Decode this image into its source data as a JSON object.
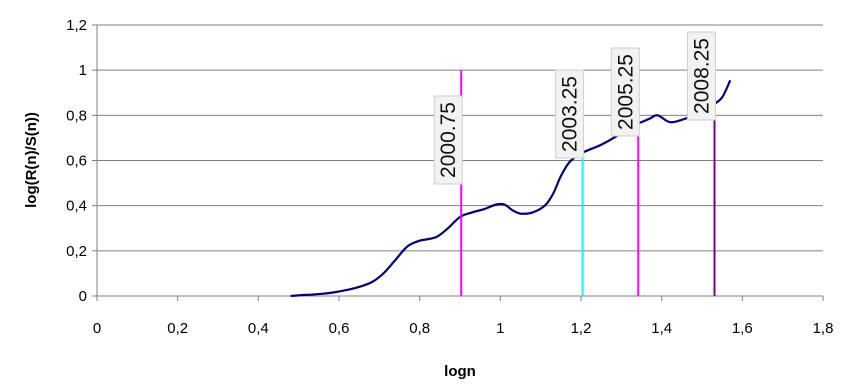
{
  "chart_data": {
    "type": "line",
    "xlabel": "logn",
    "ylabel": "log(R(n)/S(n))",
    "xlim": [
      0,
      1.8
    ],
    "ylim": [
      0,
      1.2
    ],
    "x_ticks": [
      "0",
      "0,2",
      "0,4",
      "0,6",
      "0,8",
      "1",
      "1,2",
      "1,4",
      "1,6",
      "1,8"
    ],
    "y_ticks": [
      "0",
      "0,2",
      "0,4",
      "0,6",
      "0,8",
      "1",
      "1,2"
    ],
    "grid": "horizontal",
    "series": [
      {
        "color": "#000080",
        "points": [
          [
            0.48,
            0.0
          ],
          [
            0.52,
            0.005
          ],
          [
            0.56,
            0.01
          ],
          [
            0.6,
            0.02
          ],
          [
            0.64,
            0.035
          ],
          [
            0.68,
            0.06
          ],
          [
            0.71,
            0.1
          ],
          [
            0.74,
            0.16
          ],
          [
            0.77,
            0.22
          ],
          [
            0.8,
            0.245
          ],
          [
            0.84,
            0.26
          ],
          [
            0.87,
            0.3
          ],
          [
            0.9,
            0.35
          ],
          [
            0.93,
            0.37
          ],
          [
            0.96,
            0.385
          ],
          [
            0.99,
            0.405
          ],
          [
            1.01,
            0.405
          ],
          [
            1.03,
            0.38
          ],
          [
            1.05,
            0.365
          ],
          [
            1.08,
            0.37
          ],
          [
            1.11,
            0.4
          ],
          [
            1.13,
            0.45
          ],
          [
            1.15,
            0.53
          ],
          [
            1.17,
            0.59
          ],
          [
            1.19,
            0.62
          ],
          [
            1.21,
            0.64
          ],
          [
            1.25,
            0.67
          ],
          [
            1.29,
            0.71
          ],
          [
            1.32,
            0.75
          ],
          [
            1.35,
            0.77
          ],
          [
            1.37,
            0.785
          ],
          [
            1.39,
            0.8
          ],
          [
            1.42,
            0.77
          ],
          [
            1.45,
            0.78
          ],
          [
            1.48,
            0.8
          ],
          [
            1.5,
            0.82
          ],
          [
            1.53,
            0.85
          ],
          [
            1.55,
            0.88
          ],
          [
            1.57,
            0.955
          ]
        ]
      }
    ],
    "markers": [
      {
        "x": 0.903,
        "label": "2000.75",
        "color": "#ff00ff"
      },
      {
        "x": 1.204,
        "label": "2003.25",
        "color": "#00ffff"
      },
      {
        "x": 1.342,
        "label": "2005.25",
        "color": "#ff00ff"
      },
      {
        "x": 1.531,
        "label": "2008.25",
        "color": "#800080"
      }
    ]
  }
}
